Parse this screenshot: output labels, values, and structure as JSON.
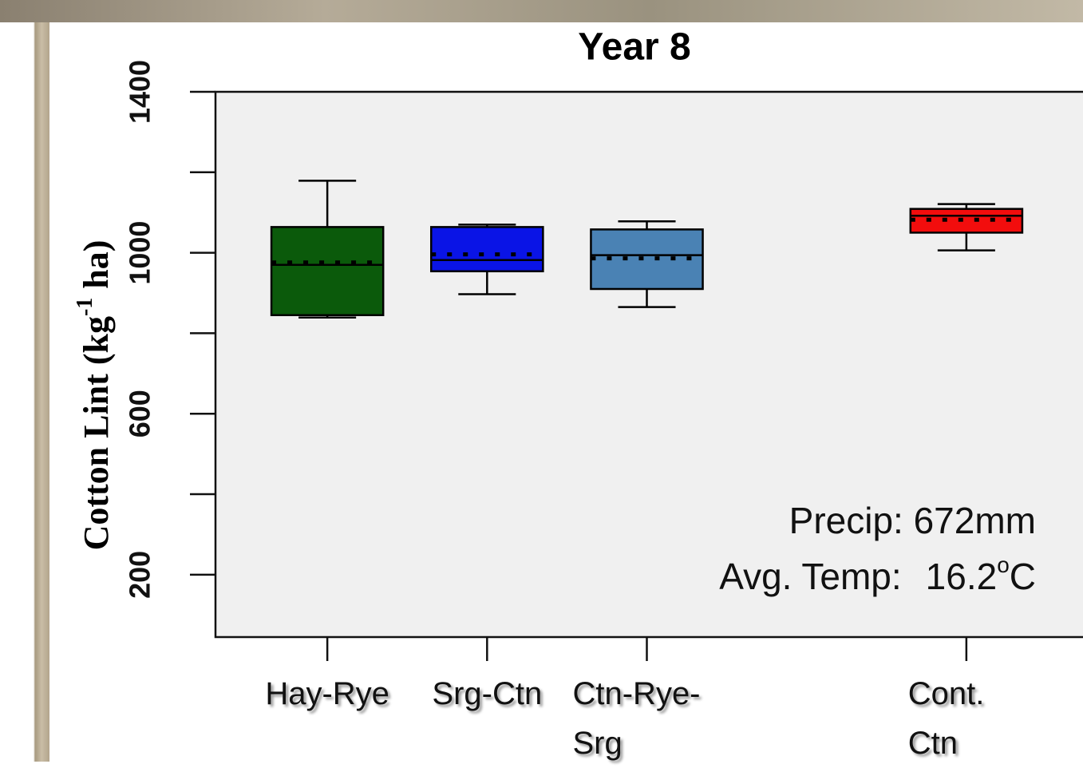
{
  "chart_data": {
    "type": "box",
    "title": "Year 8",
    "y_label": [
      "Cotton Lint (kg",
      "-1",
      " ha)"
    ],
    "categories": [
      "Hay-Rye",
      "Srg-Ctn",
      "Ctn-Rye-Srg",
      "Cont. Ctn"
    ],
    "x": [
      1,
      2,
      3,
      5
    ],
    "xlim": [
      0.3,
      5.73
    ],
    "ylim": [
      45,
      1400
    ],
    "yticks": [
      200,
      600,
      1000,
      1400
    ],
    "yminor": [
      400,
      800,
      1200
    ],
    "series": [
      {
        "name": "Hay-Rye",
        "color": "#0b5a0b",
        "whisker_low": 839,
        "q1": 845,
        "median": 970,
        "mean": 976,
        "q3": 1064,
        "whisker_high": 1179
      },
      {
        "name": "Srg-Ctn",
        "color": "#0a14e6",
        "whisker_low": 897,
        "q1": 954,
        "median": 982,
        "mean": 996,
        "q3": 1064,
        "whisker_high": 1070
      },
      {
        "name": "Ctn-Rye-Srg",
        "color": "#4a82b4",
        "whisker_low": 865,
        "q1": 910,
        "median": 994,
        "mean": 986,
        "q3": 1058,
        "whisker_high": 1078
      },
      {
        "name": "Cont. Ctn",
        "color": "#f20d0d",
        "whisker_low": 1006,
        "q1": 1050,
        "median": 1092,
        "mean": 1082,
        "q3": 1109,
        "whisker_high": 1121
      }
    ],
    "annotations": [
      "Precip: 672mm",
      [
        "Avg. Temp:",
        "16.2",
        "o",
        "C"
      ]
    ]
  }
}
